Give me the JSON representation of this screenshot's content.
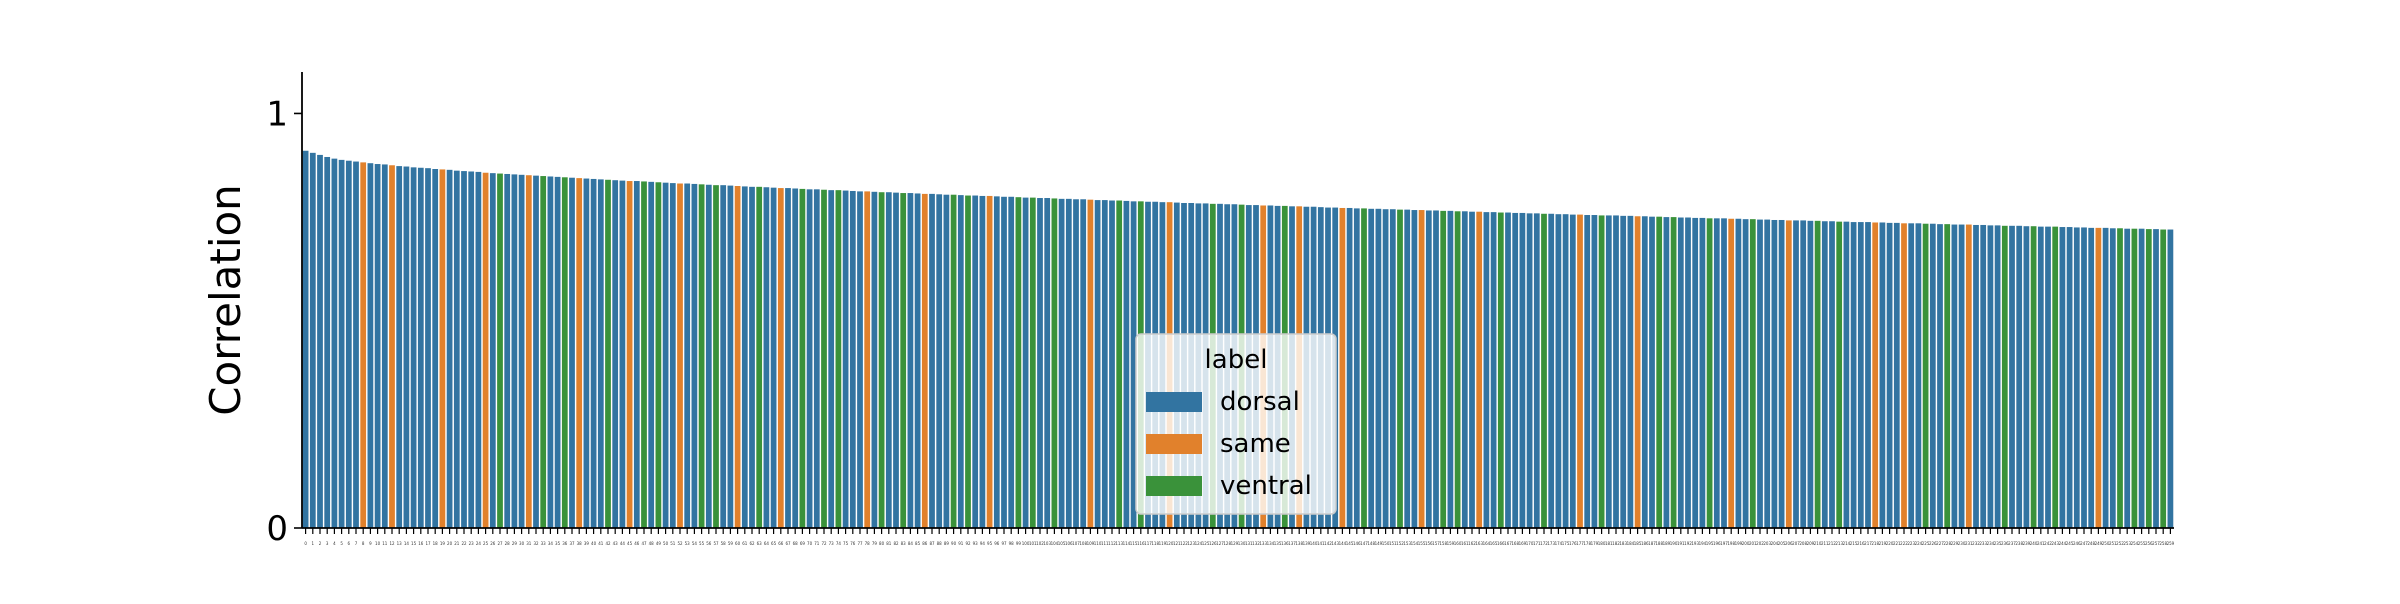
{
  "chart_data": {
    "type": "bar",
    "ylabel": "Correlation",
    "xlabel": "",
    "title": "",
    "ylim": [
      0,
      1.1
    ],
    "yticks": [
      0,
      1
    ],
    "legend": {
      "title": "label",
      "placement": "bottom-center",
      "entries": [
        {
          "name": "dorsal",
          "color": "#3274a1"
        },
        {
          "name": "same",
          "color": "#e1812c"
        },
        {
          "name": "ventral",
          "color": "#3a923a"
        }
      ]
    },
    "colors": {
      "dorsal": "#3274a1",
      "same": "#e1812c",
      "ventral": "#3a923a"
    },
    "n_bars": 260,
    "value_start": 0.91,
    "value_end": 0.72,
    "same_indices": [
      8,
      12,
      19,
      25,
      31,
      38,
      45,
      52,
      60,
      66,
      78,
      86,
      95,
      109,
      120,
      133,
      138,
      144,
      155,
      163,
      177,
      185,
      198,
      206,
      218,
      222,
      231,
      249
    ],
    "ventral_indices": [
      27,
      33,
      36,
      42,
      47,
      49,
      55,
      57,
      63,
      69,
      72,
      74,
      80,
      83,
      90,
      92,
      99,
      101,
      104,
      113,
      116,
      126,
      130,
      136,
      147,
      152,
      158,
      160,
      166,
      172,
      180,
      188,
      190,
      195,
      201,
      210,
      213,
      225,
      228,
      236,
      240,
      243,
      252,
      254,
      256,
      258
    ]
  }
}
